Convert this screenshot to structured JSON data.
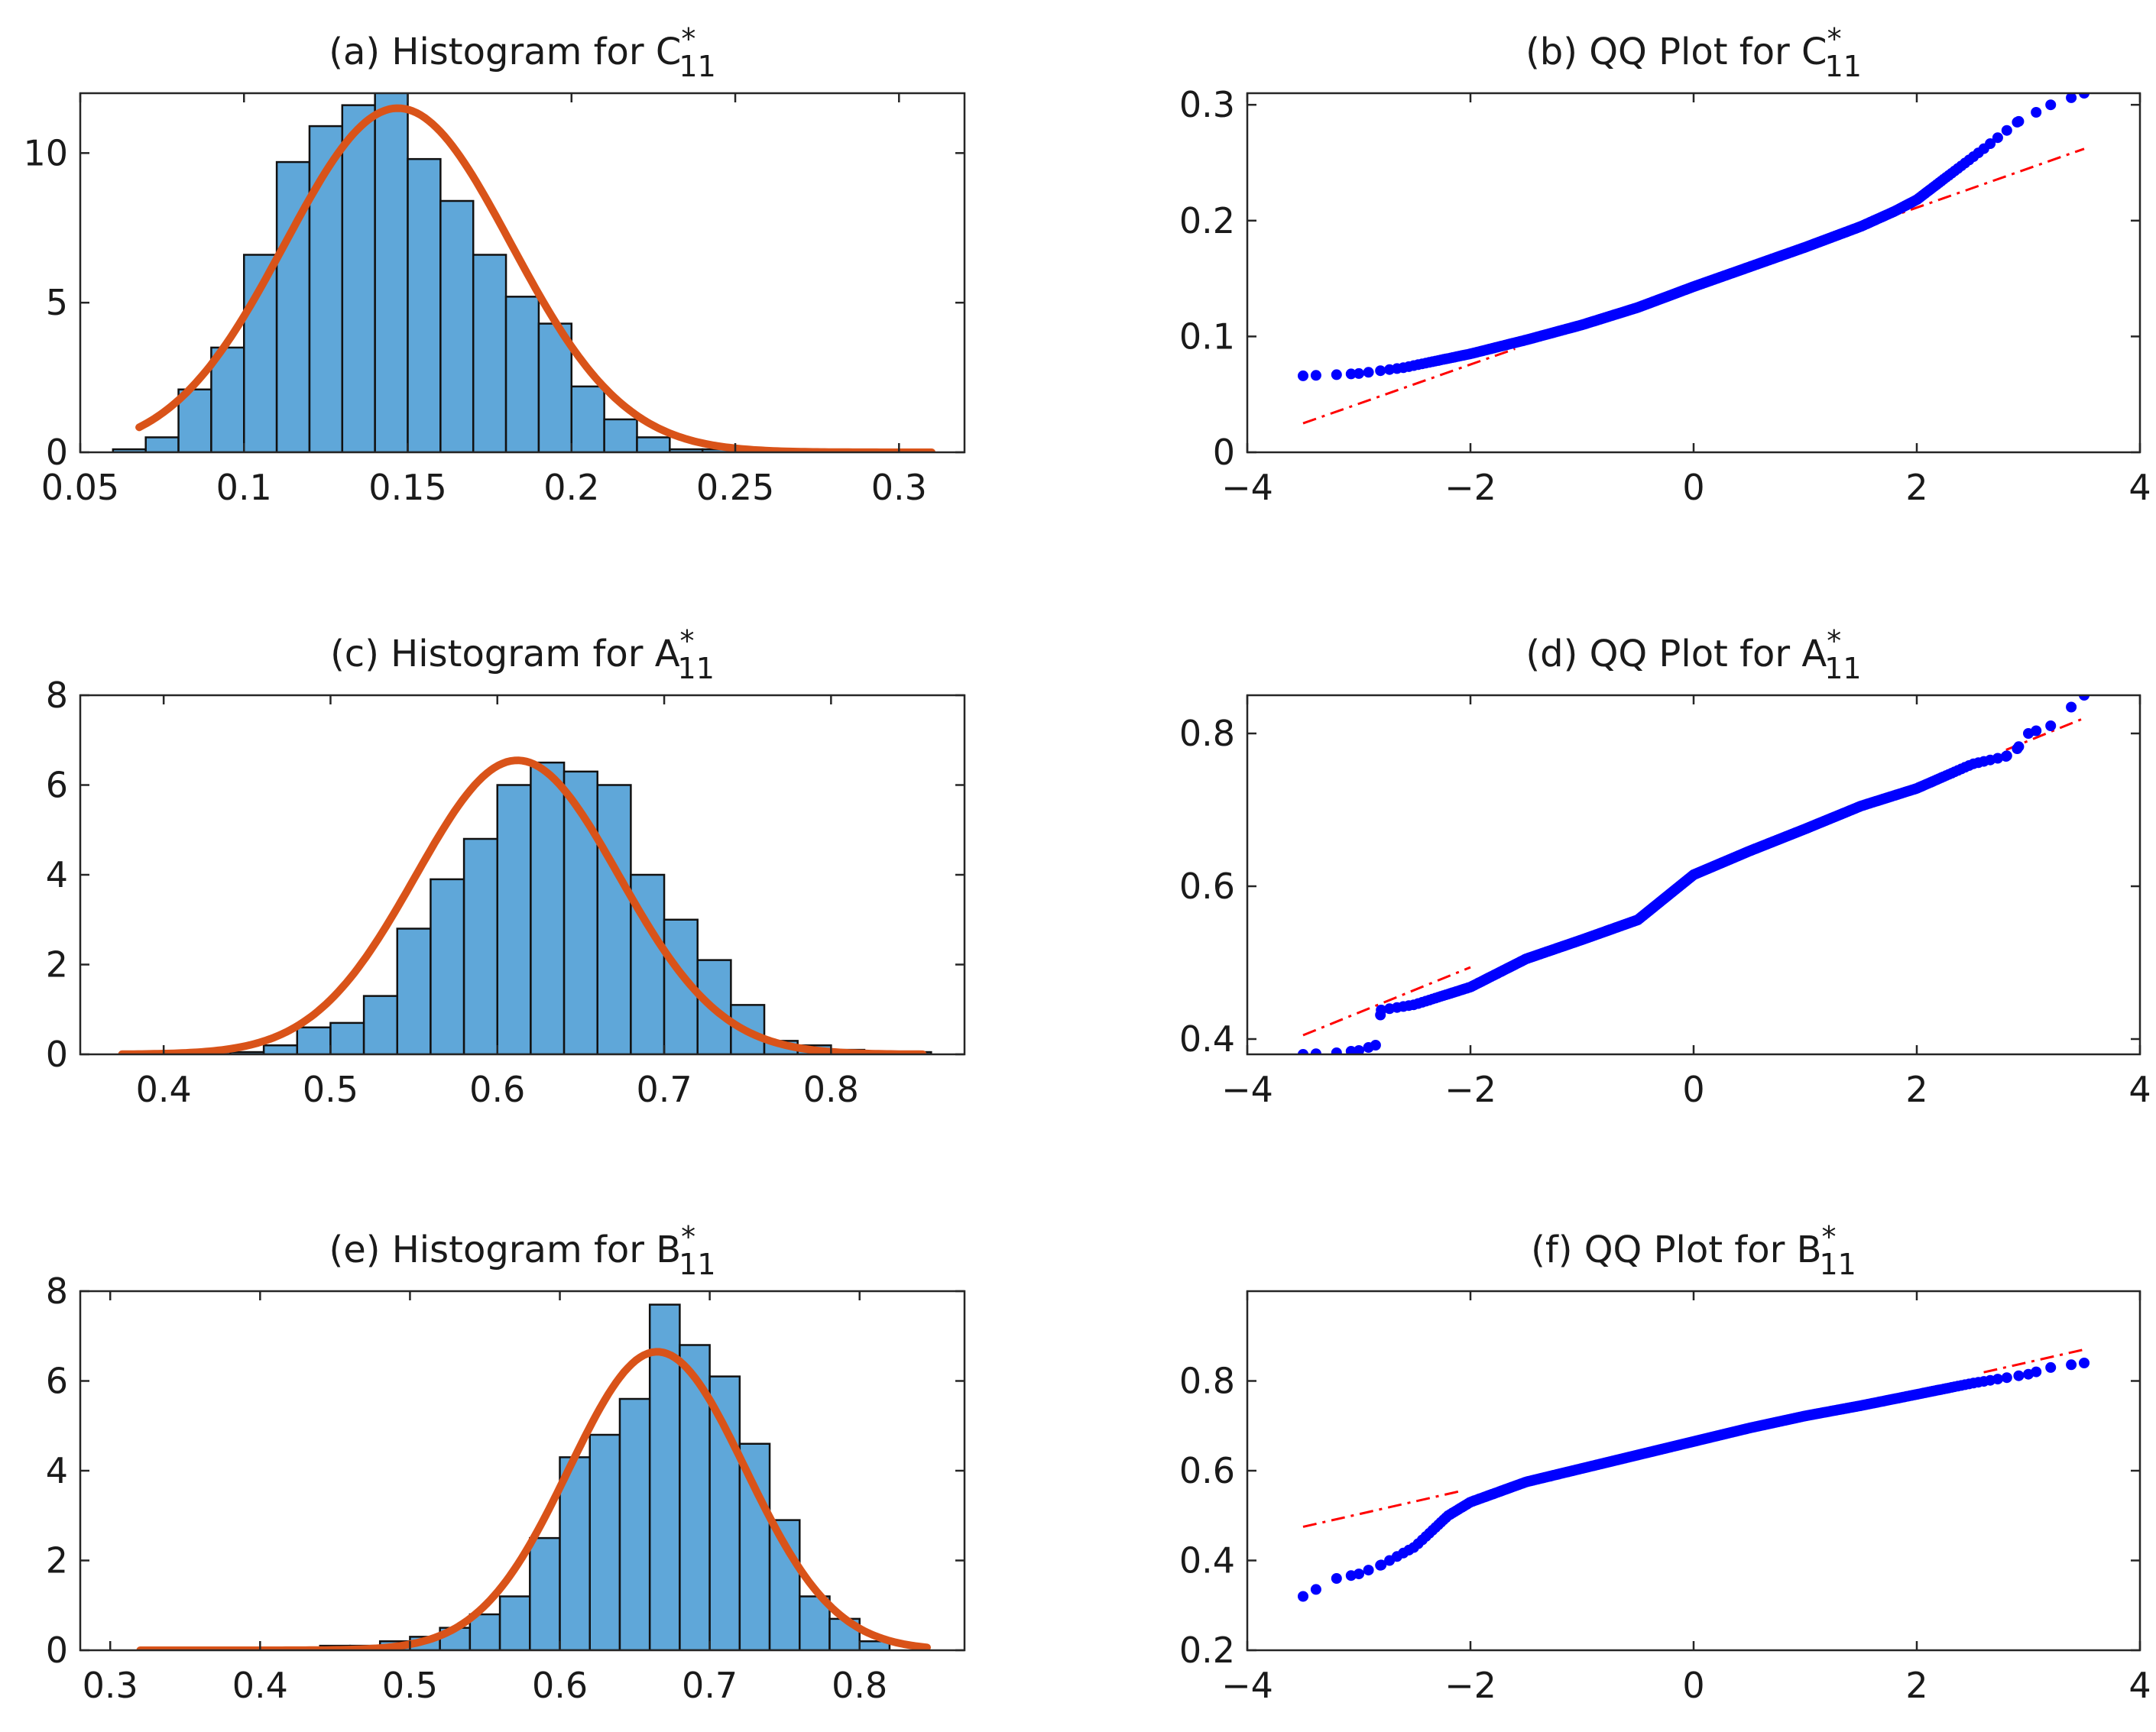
{
  "colors": {
    "bar_fill": "#5fa7d9",
    "bar_edge": "#111111",
    "pdf_line": "#d95319",
    "qq_points": "#0000ff",
    "qq_ref": "#ff0000",
    "axis": "#262626"
  },
  "chart_data": [
    {
      "id": "a",
      "type": "bar",
      "title": "(a) Histogram for C",
      "title_var": "C",
      "title_sup": "*",
      "title_sub": "11",
      "title_prefix": "(a) Histogram for ",
      "xlim": [
        0.05,
        0.32
      ],
      "ylim": [
        0,
        12
      ],
      "xticks": [
        0.05,
        0.1,
        0.15,
        0.2,
        0.25,
        0.3
      ],
      "xtick_labels": [
        "0.05",
        "0.1",
        "0.15",
        "0.2",
        "0.25",
        "0.3"
      ],
      "yticks": [
        0,
        5,
        10
      ],
      "ytick_labels": [
        "0",
        "5",
        "10"
      ],
      "bin_start": 0.06,
      "bin_width": 0.01,
      "values": [
        0.1,
        0.5,
        2.1,
        3.5,
        6.6,
        9.7,
        10.9,
        11.6,
        12.1,
        9.8,
        8.4,
        6.6,
        5.2,
        4.3,
        2.2,
        1.1,
        0.5,
        0.1,
        0.1,
        0.05,
        0.05,
        0.05,
        0.02,
        0.02,
        0.02
      ],
      "pdf": {
        "mean": 0.147,
        "sd": 0.0345,
        "scale": 11.5,
        "x_from": 0.068,
        "x_to": 0.31
      }
    },
    {
      "id": "b",
      "type": "scatter",
      "title_prefix": "(b) QQ Plot for ",
      "title_var": "C",
      "title_sup": "*",
      "title_sub": "11",
      "xlim": [
        -4,
        4
      ],
      "ylim": [
        0,
        0.31
      ],
      "xticks": [
        -4,
        -2,
        0,
        2,
        4
      ],
      "xtick_labels": [
        "−4",
        "−2",
        "0",
        "2",
        "4"
      ],
      "yticks": [
        0,
        0.1,
        0.2,
        0.3
      ],
      "ytick_labels": [
        "0",
        "0.1",
        "0.2",
        "0.3"
      ],
      "x_range": [
        -3.5,
        3.5
      ],
      "curve": [
        [
          -3.5,
          0.066
        ],
        [
          -3.2,
          0.067
        ],
        [
          -3.0,
          0.068
        ],
        [
          -2.6,
          0.073
        ],
        [
          -2.0,
          0.085
        ],
        [
          -1.5,
          0.097
        ],
        [
          -1.0,
          0.11
        ],
        [
          -0.5,
          0.125
        ],
        [
          0.0,
          0.143
        ],
        [
          0.5,
          0.16
        ],
        [
          1.0,
          0.177
        ],
        [
          1.5,
          0.195
        ],
        [
          1.8,
          0.208
        ],
        [
          2.0,
          0.218
        ],
        [
          2.3,
          0.24
        ],
        [
          2.6,
          0.262
        ],
        [
          2.9,
          0.285
        ],
        [
          3.2,
          0.3
        ],
        [
          3.5,
          0.31
        ]
      ],
      "ref_line": [
        [
          -3.5,
          0.025
        ],
        [
          3.5,
          0.262
        ]
      ],
      "ref_dash_range": [
        [
          -3.5,
          -1.6
        ],
        [
          1.7,
          3.5
        ]
      ]
    },
    {
      "id": "c",
      "type": "bar",
      "title_prefix": "(c) Histogram for ",
      "title_var": "A",
      "title_sup": "*",
      "title_sub": "11",
      "xlim": [
        0.35,
        0.88
      ],
      "ylim": [
        0,
        8
      ],
      "xticks": [
        0.4,
        0.5,
        0.6,
        0.7,
        0.8
      ],
      "xtick_labels": [
        "0.4",
        "0.5",
        "0.6",
        "0.7",
        "0.8"
      ],
      "yticks": [
        0,
        2,
        4,
        6,
        8
      ],
      "ytick_labels": [
        "0",
        "2",
        "4",
        "6",
        "8"
      ],
      "bin_start": 0.38,
      "bin_width": 0.02,
      "values": [
        0.05,
        0.05,
        0.05,
        0.05,
        0.2,
        0.6,
        0.7,
        1.3,
        2.8,
        3.9,
        4.8,
        6.0,
        6.5,
        6.3,
        6.0,
        4.0,
        3.0,
        2.1,
        1.1,
        0.3,
        0.2,
        0.1,
        0.05,
        0.05
      ],
      "pdf": {
        "mean": 0.612,
        "sd": 0.061,
        "scale": 6.55,
        "x_from": 0.375,
        "x_to": 0.855
      }
    },
    {
      "id": "d",
      "type": "scatter",
      "title_prefix": "(d) QQ Plot for ",
      "title_var": "A",
      "title_sup": "*",
      "title_sub": "11",
      "xlim": [
        -4,
        4
      ],
      "ylim": [
        0.38,
        0.85
      ],
      "xticks": [
        -4,
        -2,
        0,
        2,
        4
      ],
      "xtick_labels": [
        "−4",
        "−2",
        "0",
        "2",
        "4"
      ],
      "yticks": [
        0.4,
        0.6,
        0.8
      ],
      "ytick_labels": [
        "0.4",
        "0.6",
        "0.8"
      ],
      "x_range": [
        -3.5,
        3.5
      ],
      "curve": [
        [
          -3.5,
          0.38
        ],
        [
          -3.2,
          0.382
        ],
        [
          -3.0,
          0.385
        ],
        [
          -2.85,
          0.392
        ],
        [
          -2.8,
          0.438
        ],
        [
          -2.5,
          0.445
        ],
        [
          -2.0,
          0.468
        ],
        [
          -1.5,
          0.505
        ],
        [
          -1.0,
          0.53
        ],
        [
          -0.5,
          0.556
        ],
        [
          0.0,
          0.615
        ],
        [
          0.5,
          0.646
        ],
        [
          1.0,
          0.675
        ],
        [
          1.5,
          0.705
        ],
        [
          2.0,
          0.728
        ],
        [
          2.5,
          0.76
        ],
        [
          2.8,
          0.77
        ],
        [
          2.9,
          0.78
        ],
        [
          3.0,
          0.8
        ],
        [
          3.2,
          0.81
        ],
        [
          3.5,
          0.85
        ]
      ],
      "ref_line": [
        [
          -3.5,
          0.405
        ],
        [
          3.5,
          0.82
        ]
      ],
      "ref_dash_range": [
        [
          -3.5,
          -2.0
        ],
        [
          2.8,
          3.5
        ]
      ]
    },
    {
      "id": "e",
      "type": "bar",
      "title_prefix": "(e) Histogram for ",
      "title_var": "B",
      "title_sup": "*",
      "title_sub": "11",
      "xlim": [
        0.28,
        0.87
      ],
      "ylim": [
        0,
        8
      ],
      "xticks": [
        0.3,
        0.4,
        0.5,
        0.6,
        0.7,
        0.8
      ],
      "xtick_labels": [
        "0.3",
        "0.4",
        "0.5",
        "0.6",
        "0.7",
        "0.8"
      ],
      "yticks": [
        0,
        2,
        4,
        6,
        8
      ],
      "ytick_labels": [
        "0",
        "2",
        "4",
        "6",
        "8"
      ],
      "bin_start": 0.32,
      "bin_width": 0.02,
      "values": [
        0.05,
        0.05,
        0.05,
        0.05,
        0.05,
        0.05,
        0.1,
        0.1,
        0.2,
        0.3,
        0.5,
        0.8,
        1.2,
        2.5,
        4.3,
        4.8,
        5.6,
        7.7,
        6.8,
        6.1,
        4.6,
        2.9,
        1.2,
        0.7,
        0.2
      ],
      "pdf": {
        "mean": 0.665,
        "sd": 0.059,
        "scale": 6.65,
        "x_from": 0.32,
        "x_to": 0.845
      }
    },
    {
      "id": "f",
      "type": "scatter",
      "title_prefix": "(f) QQ Plot for ",
      "title_var": "B",
      "title_sup": "*",
      "title_sub": "11",
      "xlim": [
        -4,
        4
      ],
      "ylim": [
        0.2,
        1.0
      ],
      "xticks": [
        -4,
        -2,
        0,
        2,
        4
      ],
      "xtick_labels": [
        "−4",
        "−2",
        "0",
        "2",
        "4"
      ],
      "yticks": [
        0.2,
        0.4,
        0.6,
        0.8
      ],
      "ytick_labels": [
        "0.2",
        "0.4",
        "0.6",
        "0.8"
      ],
      "x_range": [
        -3.5,
        3.5
      ],
      "curve": [
        [
          -3.5,
          0.32
        ],
        [
          -3.2,
          0.36
        ],
        [
          -3.0,
          0.37
        ],
        [
          -2.8,
          0.39
        ],
        [
          -2.5,
          0.43
        ],
        [
          -2.2,
          0.5
        ],
        [
          -2.0,
          0.53
        ],
        [
          -1.5,
          0.575
        ],
        [
          -1.0,
          0.605
        ],
        [
          -0.5,
          0.635
        ],
        [
          0.0,
          0.665
        ],
        [
          0.5,
          0.695
        ],
        [
          1.0,
          0.722
        ],
        [
          1.5,
          0.745
        ],
        [
          2.0,
          0.77
        ],
        [
          2.5,
          0.795
        ],
        [
          3.0,
          0.815
        ],
        [
          3.2,
          0.83
        ],
        [
          3.5,
          0.84
        ]
      ],
      "ref_line": [
        [
          -3.5,
          0.475
        ],
        [
          3.5,
          0.87
        ]
      ],
      "ref_dash_range": [
        [
          -3.5,
          -2.1
        ],
        [
          2.6,
          3.5
        ]
      ]
    }
  ]
}
